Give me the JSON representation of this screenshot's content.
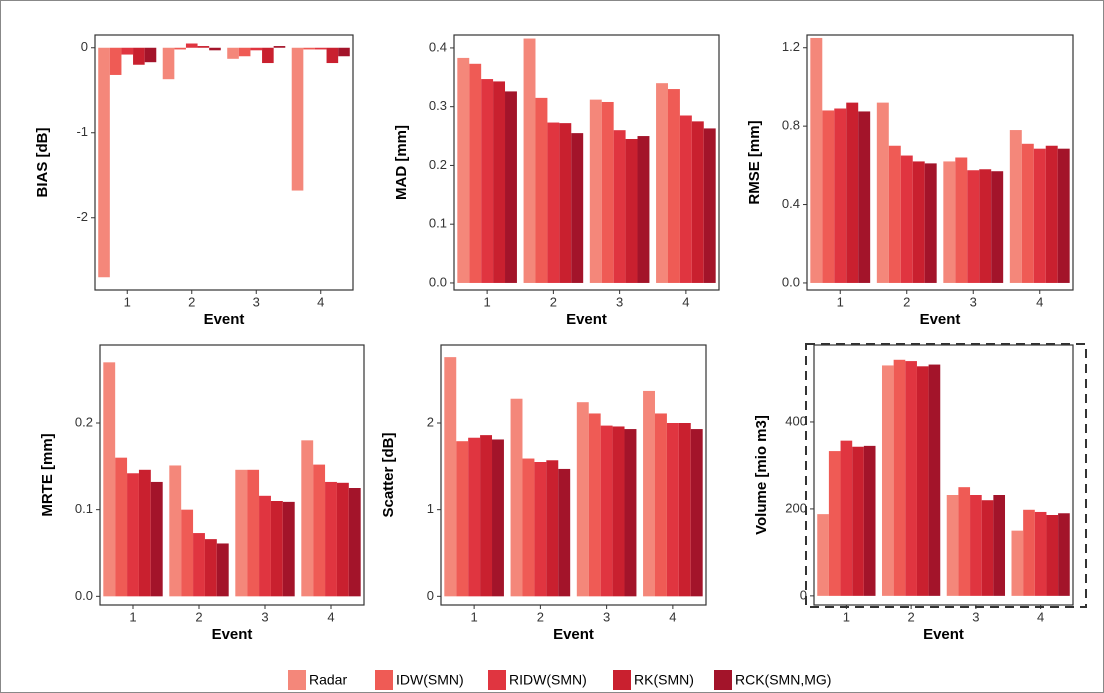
{
  "chart_data": [
    {
      "type": "bar",
      "y_label": "BIAS [dB]",
      "x_label": "Event",
      "categories": [
        "1",
        "2",
        "3",
        "4"
      ],
      "ylim": [
        -2.85,
        0.15
      ],
      "yticks": [
        -2,
        -1,
        0
      ],
      "series": [
        {
          "name": "Radar",
          "color": "#f4877a",
          "values": [
            -2.7,
            -0.37,
            -0.13,
            -1.68
          ]
        },
        {
          "name": "IDW(SMN)",
          "color": "#ef5b55",
          "values": [
            -0.32,
            -0.02,
            -0.1,
            -0.02
          ]
        },
        {
          "name": "RIDW(SMN)",
          "color": "#e03540",
          "values": [
            -0.08,
            0.05,
            -0.03,
            -0.02
          ]
        },
        {
          "name": "RK(SMN)",
          "color": "#c9202f",
          "values": [
            -0.2,
            0.02,
            -0.18,
            -0.18
          ]
        },
        {
          "name": "RCK(SMN,MG)",
          "color": "#a3142a",
          "values": [
            -0.17,
            -0.03,
            0.02,
            -0.1
          ]
        }
      ]
    },
    {
      "type": "bar",
      "y_label": "MAD [mm]",
      "x_label": "Event",
      "categories": [
        "1",
        "2",
        "3",
        "4"
      ],
      "ylim": [
        -0.012,
        0.422
      ],
      "yticks": [
        {
          "value": 0,
          "label": "0.0"
        },
        0.1,
        0.2,
        0.3,
        0.4
      ],
      "series": [
        {
          "name": "Radar",
          "color": "#f4877a",
          "values": [
            0.383,
            0.416,
            0.312,
            0.34
          ]
        },
        {
          "name": "IDW(SMN)",
          "color": "#ef5b55",
          "values": [
            0.373,
            0.315,
            0.308,
            0.33
          ]
        },
        {
          "name": "RIDW(SMN)",
          "color": "#e03540",
          "values": [
            0.347,
            0.273,
            0.26,
            0.285
          ]
        },
        {
          "name": "RK(SMN)",
          "color": "#c9202f",
          "values": [
            0.343,
            0.272,
            0.245,
            0.275
          ]
        },
        {
          "name": "RCK(SMN,MG)",
          "color": "#a3142a",
          "values": [
            0.326,
            0.255,
            0.25,
            0.263
          ]
        }
      ]
    },
    {
      "type": "bar",
      "y_label": "RMSE [mm]",
      "x_label": "Event",
      "categories": [
        "1",
        "2",
        "3",
        "4"
      ],
      "ylim": [
        -0.036,
        1.265
      ],
      "yticks": [
        {
          "value": 0,
          "label": "0.0"
        },
        0.4,
        0.8,
        1.2
      ],
      "series": [
        {
          "name": "Radar",
          "color": "#f4877a",
          "values": [
            1.25,
            0.92,
            0.62,
            0.78
          ]
        },
        {
          "name": "IDW(SMN)",
          "color": "#ef5b55",
          "values": [
            0.88,
            0.7,
            0.64,
            0.71
          ]
        },
        {
          "name": "RIDW(SMN)",
          "color": "#e03540",
          "values": [
            0.89,
            0.65,
            0.575,
            0.685
          ]
        },
        {
          "name": "RK(SMN)",
          "color": "#c9202f",
          "values": [
            0.92,
            0.62,
            0.58,
            0.7
          ]
        },
        {
          "name": "RCK(SMN,MG)",
          "color": "#a3142a",
          "values": [
            0.875,
            0.61,
            0.57,
            0.685
          ]
        }
      ]
    },
    {
      "type": "bar",
      "y_label": "MRTE [mm]",
      "x_label": "Event",
      "categories": [
        "1",
        "2",
        "3",
        "4"
      ],
      "ylim": [
        -0.01,
        0.29
      ],
      "yticks": [
        {
          "value": 0,
          "label": "0.0"
        },
        0.1,
        0.2
      ],
      "series": [
        {
          "name": "Radar",
          "color": "#f4877a",
          "values": [
            0.27,
            0.151,
            0.146,
            0.18
          ]
        },
        {
          "name": "IDW(SMN)",
          "color": "#ef5b55",
          "values": [
            0.16,
            0.1,
            0.146,
            0.152
          ]
        },
        {
          "name": "RIDW(SMN)",
          "color": "#e03540",
          "values": [
            0.142,
            0.073,
            0.116,
            0.132
          ]
        },
        {
          "name": "RK(SMN)",
          "color": "#c9202f",
          "values": [
            0.146,
            0.066,
            0.11,
            0.131
          ]
        },
        {
          "name": "RCK(SMN,MG)",
          "color": "#a3142a",
          "values": [
            0.132,
            0.061,
            0.109,
            0.125
          ]
        }
      ]
    },
    {
      "type": "bar",
      "y_label": "Scatter [dB]",
      "x_label": "Event",
      "categories": [
        "1",
        "2",
        "3",
        "4"
      ],
      "ylim": [
        -0.1,
        2.9
      ],
      "yticks": [
        0,
        1,
        2
      ],
      "series": [
        {
          "name": "Radar",
          "color": "#f4877a",
          "values": [
            2.76,
            2.28,
            2.24,
            2.37
          ]
        },
        {
          "name": "IDW(SMN)",
          "color": "#ef5b55",
          "values": [
            1.79,
            1.59,
            2.11,
            2.11
          ]
        },
        {
          "name": "RIDW(SMN)",
          "color": "#e03540",
          "values": [
            1.83,
            1.55,
            1.97,
            2.0
          ]
        },
        {
          "name": "RK(SMN)",
          "color": "#c9202f",
          "values": [
            1.86,
            1.57,
            1.96,
            2.0
          ]
        },
        {
          "name": "RCK(SMN,MG)",
          "color": "#a3142a",
          "values": [
            1.81,
            1.47,
            1.93,
            1.93
          ]
        }
      ]
    },
    {
      "type": "bar",
      "y_label": "Volume [mio m3]",
      "x_label": "Event",
      "categories": [
        "1",
        "2",
        "3",
        "4"
      ],
      "ylim": [
        -21,
        577
      ],
      "yticks": [
        0,
        200,
        400
      ],
      "series": [
        {
          "name": "Radar",
          "color": "#f4877a",
          "values": [
            188,
            530,
            232,
            150
          ]
        },
        {
          "name": "IDW(SMN)",
          "color": "#ef5b55",
          "values": [
            333,
            543,
            250,
            198
          ]
        },
        {
          "name": "RIDW(SMN)",
          "color": "#e03540",
          "values": [
            357,
            540,
            232,
            193
          ]
        },
        {
          "name": "RK(SMN)",
          "color": "#c9202f",
          "values": [
            343,
            528,
            220,
            186
          ]
        },
        {
          "name": "RCK(SMN,MG)",
          "color": "#a3142a",
          "values": [
            345,
            532,
            232,
            190
          ]
        }
      ]
    }
  ]
}
